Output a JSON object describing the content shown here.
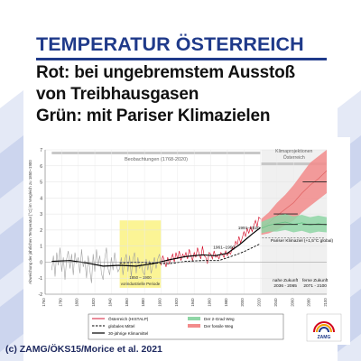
{
  "header": {
    "title": "TEMPERATUR ÖSTERREICH",
    "line1": "Rot: bei ungebremstem Ausstoß",
    "line2": "von Treibhausgasen",
    "line3": "Grün: mit Pariser Klimazielen"
  },
  "credit": "(c) ZAMG/ÖKS15/Morice et al. 2021",
  "colors": {
    "title": "#1f3a8a",
    "observations_band": "#c8c8c8",
    "preindustrial_band": "#fbf38a",
    "red_scenario": "#f28b8b",
    "green_scenario": "#8fd6a6",
    "station_series": "#a0a0a0"
  },
  "chart_data": {
    "type": "line",
    "ylabel": "Abweichung der jährlichen Temperatur [°C] im Vergleich zu 1850–1900",
    "xlim": [
      1760,
      2100
    ],
    "ylim": [
      -2,
      7
    ],
    "xticks": [
      1760,
      1780,
      1800,
      1820,
      1840,
      1860,
      1880,
      1900,
      1920,
      1940,
      1960,
      1980,
      2000,
      2020,
      2040,
      2060,
      2080,
      2100
    ],
    "yticks": [
      -2,
      -1,
      0,
      1,
      2,
      3,
      4,
      5,
      6,
      7
    ],
    "grid": true,
    "bands": {
      "observations": {
        "label": "Beobachtungen (1768-2020)",
        "x": [
          1768,
          2020
        ]
      },
      "projections": {
        "label_line1": "Klimaprojektionen",
        "label_line2": "Österreich",
        "x": [
          2021,
          2100
        ]
      }
    },
    "preindustrial": {
      "label_line1": "1850 – 1900",
      "label_line2": "vorindustrielle Periode",
      "x": [
        1850,
        1900
      ]
    },
    "annotations": [
      {
        "text": "1991–2020",
        "x": 2006,
        "y": 2.05
      },
      {
        "text": "1961–1990",
        "x": 1976,
        "y": 0.85
      },
      {
        "text": "Pariser Klimaziel (+1,5°C global)",
        "x": 2070,
        "y": 1.25
      },
      {
        "text": "nahe Zukunft",
        "text2": "2036 - 2065",
        "x": 2050,
        "y": -1.2
      },
      {
        "text": "ferne Zukunft",
        "text2": "2071 - 2100",
        "x": 2086,
        "y": -1.2
      }
    ],
    "series": [
      {
        "name": "Österreich (HISTALP)",
        "x": [
          1768,
          1770,
          1772,
          1774,
          1776,
          1778,
          1780,
          1782,
          1784,
          1786,
          1788,
          1790,
          1792,
          1794,
          1796,
          1798,
          1800,
          1802,
          1804,
          1806,
          1808,
          1810,
          1812,
          1814,
          1816,
          1818,
          1820,
          1822,
          1824,
          1826,
          1828,
          1830,
          1832,
          1834,
          1836,
          1838,
          1840,
          1842,
          1844,
          1846,
          1848,
          1850,
          1852,
          1854,
          1856,
          1858,
          1860,
          1862,
          1864,
          1866,
          1868,
          1870,
          1872,
          1874,
          1876,
          1878,
          1880,
          1882,
          1884,
          1886,
          1888,
          1890,
          1892,
          1894,
          1896,
          1898,
          1900,
          1902,
          1904,
          1906,
          1908,
          1910,
          1912,
          1914,
          1916,
          1918,
          1920,
          1922,
          1924,
          1926,
          1928,
          1930,
          1932,
          1934,
          1936,
          1938,
          1940,
          1942,
          1944,
          1946,
          1948,
          1950,
          1952,
          1954,
          1956,
          1958,
          1960,
          1962,
          1964,
          1966,
          1968,
          1970,
          1972,
          1974,
          1976,
          1978,
          1980,
          1982,
          1984,
          1986,
          1988,
          1990,
          1992,
          1994,
          1996,
          1998,
          2000,
          2002,
          2004,
          2006,
          2008,
          2010,
          2012,
          2014,
          2016,
          2018,
          2020
        ],
        "values": [
          -0.5,
          0.4,
          -0.9,
          0.6,
          -0.2,
          0.9,
          -0.6,
          0.3,
          -1.1,
          0.2,
          0.7,
          -0.4,
          0.5,
          -0.8,
          0.6,
          -0.1,
          0.3,
          -0.7,
          0.8,
          -0.3,
          0.1,
          -1.0,
          0.4,
          -0.5,
          -1.3,
          0.5,
          -0.6,
          0.8,
          -0.2,
          0.4,
          -0.7,
          -1.1,
          0.2,
          0.9,
          -0.4,
          -0.8,
          0.3,
          -0.5,
          0.6,
          -0.2,
          -0.6,
          -0.4,
          0.3,
          -0.8,
          0.1,
          0.5,
          -0.6,
          0.4,
          -0.9,
          0.2,
          0.6,
          -0.7,
          0.3,
          -0.4,
          -0.1,
          -0.6,
          -0.8,
          0.2,
          -0.5,
          0.1,
          -0.7,
          -0.2,
          0.3,
          -0.4,
          0.2,
          0.5,
          -0.2,
          0.4,
          0.1,
          -0.3,
          0.3,
          -0.1,
          0.2,
          0.5,
          0.0,
          0.6,
          0.2,
          0.7,
          0.1,
          0.5,
          0.3,
          0.6,
          0.2,
          0.8,
          0.4,
          0.1,
          0.6,
          0.3,
          0.9,
          0.5,
          0.2,
          1.0,
          0.4,
          0.3,
          -0.1,
          0.6,
          0.5,
          0.2,
          0.7,
          0.3,
          0.4,
          0.2,
          0.6,
          0.5,
          0.3,
          0.7,
          0.4,
          0.6,
          0.5,
          0.9,
          0.8,
          1.3,
          1.1,
          1.6,
          1.2,
          1.5,
          1.9,
          1.6,
          2.1,
          1.8,
          2.2,
          1.9,
          2.3,
          2.6,
          2.2,
          2.8,
          2.7
        ]
      },
      {
        "name": "globales Mittel",
        "x": [
          1850,
          1870,
          1890,
          1910,
          1930,
          1950,
          1970,
          1990,
          2000,
          2010,
          2020
        ],
        "values": [
          -0.05,
          0.0,
          -0.05,
          -0.1,
          0.05,
          0.1,
          0.1,
          0.45,
          0.65,
          0.9,
          1.15
        ]
      },
      {
        "name": "30-jährige Klimamittel",
        "x": [
          1768,
          1790,
          1810,
          1830,
          1850,
          1870,
          1890,
          1910,
          1930,
          1950,
          1965,
          1980,
          1995,
          2010,
          2020
        ],
        "values": [
          0.05,
          0.1,
          -0.05,
          -0.25,
          -0.2,
          -0.25,
          -0.1,
          0.15,
          0.35,
          0.45,
          0.4,
          0.55,
          1.1,
          1.75,
          2.15
        ]
      },
      {
        "name": "Der fossile Weg",
        "x": [
          2021,
          2030,
          2040,
          2050,
          2060,
          2070,
          2080,
          2090,
          2100
        ],
        "values": [
          2.2,
          2.45,
          2.9,
          3.3,
          3.7,
          4.3,
          4.8,
          5.2,
          5.7
        ],
        "lower": [
          1.7,
          1.8,
          2.0,
          2.3,
          2.6,
          3.1,
          3.5,
          3.9,
          4.3
        ],
        "upper": [
          2.7,
          3.1,
          3.7,
          4.2,
          4.8,
          5.5,
          6.2,
          6.6,
          7.0
        ],
        "period_means": [
          {
            "x": [
              2036,
              2065
            ],
            "value": 3.0
          },
          {
            "x": [
              2071,
              2100
            ],
            "value": 5.0
          }
        ]
      },
      {
        "name": "Der 2-Grad Weg",
        "x": [
          2021,
          2030,
          2040,
          2050,
          2060,
          2070,
          2080,
          2090,
          2100
        ],
        "values": [
          2.1,
          2.3,
          2.4,
          2.5,
          2.35,
          2.45,
          2.3,
          2.4,
          2.3
        ],
        "lower": [
          1.8,
          1.9,
          1.9,
          2.0,
          1.85,
          1.95,
          1.8,
          1.9,
          1.85
        ],
        "upper": [
          2.5,
          2.7,
          2.9,
          3.0,
          2.85,
          2.95,
          2.8,
          2.9,
          2.8
        ],
        "period_means": [
          {
            "x": [
              2036,
              2065
            ],
            "value": 2.35
          },
          {
            "x": [
              2071,
              2100
            ],
            "value": 2.35
          }
        ]
      }
    ],
    "legend": {
      "position": "bottom",
      "items": [
        {
          "label": "Österreich (HISTALP)",
          "style": "line",
          "color": "#d2001e"
        },
        {
          "label": "globales Mittel",
          "style": "dashed",
          "color": "#000000"
        },
        {
          "label": "30-jährige Klimamittel",
          "style": "line",
          "color": "#000000"
        },
        {
          "label": "Der 2-Grad Weg",
          "style": "patch",
          "color": "#8fd6a6"
        },
        {
          "label": "Der fossile Weg",
          "style": "patch",
          "color": "#f28b8b"
        }
      ]
    },
    "logo_text": "ZAMG"
  }
}
